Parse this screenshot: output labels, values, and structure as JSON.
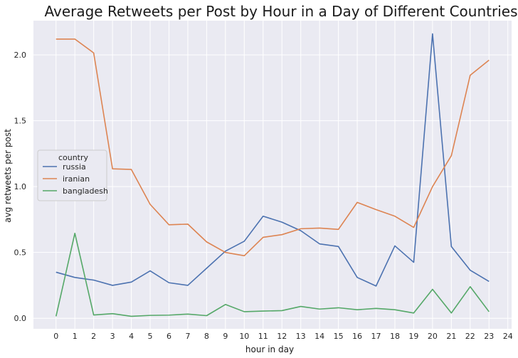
{
  "chart_data": {
    "type": "line",
    "title": "Average Retweets per Post by Hour in a Day of Different Countries",
    "xlabel": "hour in day",
    "ylabel": "avg retweets per post",
    "x": [
      0,
      1,
      2,
      3,
      4,
      5,
      6,
      7,
      8,
      9,
      10,
      11,
      12,
      13,
      14,
      15,
      16,
      17,
      18,
      19,
      20,
      21,
      22,
      23
    ],
    "xticks": [
      "0",
      "1",
      "2",
      "3",
      "4",
      "5",
      "6",
      "7",
      "8",
      "9",
      "10",
      "11",
      "12",
      "13",
      "14",
      "15",
      "16",
      "17",
      "18",
      "19",
      "20",
      "21",
      "22",
      "23",
      "24"
    ],
    "xlim": [
      -1.2,
      24.2
    ],
    "yticks": [
      "0.0",
      "0.5",
      "1.0",
      "1.5",
      "2.0"
    ],
    "ytick_values": [
      0.0,
      0.5,
      1.0,
      1.5,
      2.0
    ],
    "ylim": [
      -0.08,
      2.26
    ],
    "grid": true,
    "legend": {
      "title": "country",
      "placement": "center-left"
    },
    "series": [
      {
        "name": "russia",
        "color": "#4c72b0",
        "values": [
          0.35,
          0.31,
          0.29,
          0.25,
          0.275,
          0.36,
          0.27,
          0.25,
          0.38,
          0.51,
          0.585,
          0.775,
          0.73,
          0.665,
          0.565,
          0.545,
          0.31,
          0.245,
          0.55,
          0.425,
          2.16,
          0.545,
          0.365,
          0.28
        ]
      },
      {
        "name": "iranian",
        "color": "#dd8452",
        "values": [
          2.12,
          2.12,
          2.015,
          1.135,
          1.13,
          0.865,
          0.71,
          0.715,
          0.58,
          0.5,
          0.475,
          0.615,
          0.635,
          0.68,
          0.685,
          0.675,
          0.88,
          0.825,
          0.775,
          0.69,
          1.0,
          1.235,
          1.845,
          1.96
        ]
      },
      {
        "name": "bangladesh",
        "color": "#55a868",
        "values": [
          0.015,
          0.645,
          0.025,
          0.035,
          0.015,
          0.022,
          0.024,
          0.032,
          0.02,
          0.105,
          0.05,
          0.055,
          0.058,
          0.09,
          0.07,
          0.08,
          0.065,
          0.075,
          0.065,
          0.04,
          0.22,
          0.04,
          0.24,
          0.05
        ]
      }
    ]
  }
}
